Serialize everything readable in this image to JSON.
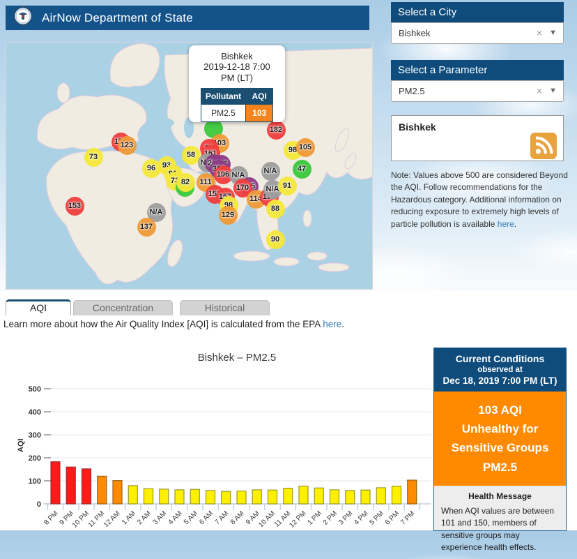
{
  "header": {
    "title": "AirNow Department of State"
  },
  "map": {
    "popup": {
      "city": "Bishkek",
      "datetime": "2019-12-18 7:00 PM (LT)",
      "pollutant_label": "Pollutant",
      "aqi_label": "AQI",
      "pollutant": "PM2.5",
      "aqi": "103",
      "aqi_cell_color": "#F5841F"
    },
    "markers": [
      {
        "label": "176",
        "cat": "unhealthy",
        "x": 164,
        "y": 142
      },
      {
        "label": "123",
        "cat": "usg",
        "x": 173,
        "y": 147
      },
      {
        "label": "73",
        "cat": "moderate",
        "x": 125,
        "y": 164
      },
      {
        "label": "58",
        "cat": "moderate",
        "x": 265,
        "y": 161
      },
      {
        "label": "96",
        "cat": "moderate",
        "x": 208,
        "y": 180
      },
      {
        "label": "93",
        "cat": "moderate",
        "x": 230,
        "y": 176
      },
      {
        "label": "91",
        "cat": "moderate",
        "x": 239,
        "y": 188
      },
      {
        "label": "73",
        "cat": "moderate",
        "x": 242,
        "y": 198
      },
      {
        "label": "",
        "cat": "good",
        "x": 256,
        "y": 207
      },
      {
        "label": "82",
        "cat": "moderate",
        "x": 257,
        "y": 200
      },
      {
        "label": "153",
        "cat": "unhealthy",
        "x": 98,
        "y": 234
      },
      {
        "label": "N/A",
        "cat": "na",
        "x": 215,
        "y": 243
      },
      {
        "label": "137",
        "cat": "usg",
        "x": 201,
        "y": 264
      },
      {
        "label": "",
        "cat": "good",
        "x": 297,
        "y": 123
      },
      {
        "label": "103",
        "cat": "usg",
        "x": 306,
        "y": 144
      },
      {
        "label": "82",
        "cat": "unhealthy",
        "x": 291,
        "y": 151
      },
      {
        "label": "161",
        "cat": "unhealthy",
        "x": 293,
        "y": 159
      },
      {
        "label": "N/A",
        "cat": "na",
        "x": 288,
        "y": 172
      },
      {
        "label": "222",
        "cat": "very_unhealthy",
        "x": 298,
        "y": 173
      },
      {
        "label": "227",
        "cat": "very_unhealthy",
        "x": 308,
        "y": 174
      },
      {
        "label": "368",
        "cat": "very_unhealthy",
        "x": 305,
        "y": 181
      },
      {
        "label": "196",
        "cat": "unhealthy",
        "x": 311,
        "y": 189
      },
      {
        "label": "N/A",
        "cat": "na",
        "x": 333,
        "y": 190
      },
      {
        "label": "175",
        "cat": "very_unhealthy",
        "x": 348,
        "y": 206
      },
      {
        "label": "170",
        "cat": "unhealthy",
        "x": 339,
        "y": 208
      },
      {
        "label": "111",
        "cat": "usg",
        "x": 286,
        "y": 200
      },
      {
        "label": "152",
        "cat": "unhealthy",
        "x": 299,
        "y": 217
      },
      {
        "label": "157",
        "cat": "unhealthy",
        "x": 314,
        "y": 221
      },
      {
        "label": "98",
        "cat": "moderate",
        "x": 319,
        "y": 233
      },
      {
        "label": "129",
        "cat": "usg",
        "x": 318,
        "y": 247
      },
      {
        "label": "114",
        "cat": "usg",
        "x": 358,
        "y": 224
      },
      {
        "label": "154",
        "cat": "unhealthy",
        "x": 377,
        "y": 221
      },
      {
        "label": "N/A",
        "cat": "na",
        "x": 382,
        "y": 210
      },
      {
        "label": "91",
        "cat": "moderate",
        "x": 403,
        "y": 205
      },
      {
        "label": "88",
        "cat": "moderate",
        "x": 386,
        "y": 238
      },
      {
        "label": "182",
        "cat": "unhealthy",
        "x": 387,
        "y": 125
      },
      {
        "label": "98",
        "cat": "moderate",
        "x": 411,
        "y": 154
      },
      {
        "label": "105",
        "cat": "usg",
        "x": 429,
        "y": 150
      },
      {
        "label": "N/A",
        "cat": "na",
        "x": 379,
        "y": 184
      },
      {
        "label": "47",
        "cat": "good",
        "x": 424,
        "y": 181
      },
      {
        "label": "90",
        "cat": "moderate",
        "x": 386,
        "y": 282
      }
    ]
  },
  "aqi_colors": {
    "good": "#3DC93D",
    "moderate": "#F5E83B",
    "usg": "#F09A38",
    "unhealthy": "#EF4040",
    "very_unhealthy": "#8D3D86",
    "na": "#9E9E9E"
  },
  "sidebar": {
    "city_select": {
      "header": "Select a City",
      "value": "Bishkek"
    },
    "parameter_select": {
      "header": "Select a Parameter",
      "value": "PM2.5"
    },
    "rss_box": {
      "title": "Bishkek"
    },
    "note": {
      "text": "Note: Values above 500 are considered Beyond the AQI. Follow recommendations for the Hazardous category. Additional information on reducing exposure to extremely high levels of particle pollution is available ",
      "link": "here",
      "suffix": "."
    }
  },
  "tabs": [
    {
      "label": "AQI",
      "active": true
    },
    {
      "label": "Concentration",
      "active": false
    },
    {
      "label": "Historical",
      "active": false
    }
  ],
  "learn_more": {
    "prefix": "Learn more about how the Air Quality Index [AQI] is calculated from the EPA ",
    "link": "here",
    "suffix": "."
  },
  "chart_data": {
    "type": "bar",
    "title": "Bishkek – PM2.5",
    "xlabel": "",
    "ylabel": "AQI",
    "ylim": [
      0,
      500
    ],
    "yticks": [
      0,
      100,
      200,
      300,
      400,
      500
    ],
    "grid": true,
    "categories": [
      "8 PM",
      "9 PM",
      "10 PM",
      "11 PM",
      "12 AM",
      "1 AM",
      "2 AM",
      "3 AM",
      "4 AM",
      "5 AM",
      "6 AM",
      "7 AM",
      "8 AM",
      "9 AM",
      "10 AM",
      "11 AM",
      "12 PM",
      "1 PM",
      "2 PM",
      "3 PM",
      "4 PM",
      "5 PM",
      "6 PM",
      "7 PM"
    ],
    "values": [
      183,
      160,
      152,
      120,
      101,
      79,
      66,
      64,
      61,
      63,
      58,
      54,
      56,
      61,
      60,
      68,
      77,
      69,
      61,
      58,
      60,
      70,
      77,
      103
    ],
    "bar_styles": {
      "red": {
        "fill": "#FF1A1A",
        "stroke": "#A03030"
      },
      "orange": {
        "fill": "#FF8C00",
        "stroke": "#9A6014"
      },
      "yellow": {
        "fill": "#FFF000",
        "stroke": "#99992E"
      }
    },
    "thresholds": {
      "red_above": 150,
      "orange_above": 100
    }
  },
  "current_conditions": {
    "title": "Current Conditions",
    "observed_at": "observed at",
    "datetime": "Dec 18, 2019 7:00 PM (LT)",
    "lines": [
      "103 AQI",
      "Unhealthy for",
      "Sensitive Groups",
      "PM2.5"
    ],
    "aqi_color": "#FF8A00",
    "health_header": "Health Message",
    "health_text": "When AQI values are between 101 and 150, members of sensitive groups may experience health effects."
  }
}
